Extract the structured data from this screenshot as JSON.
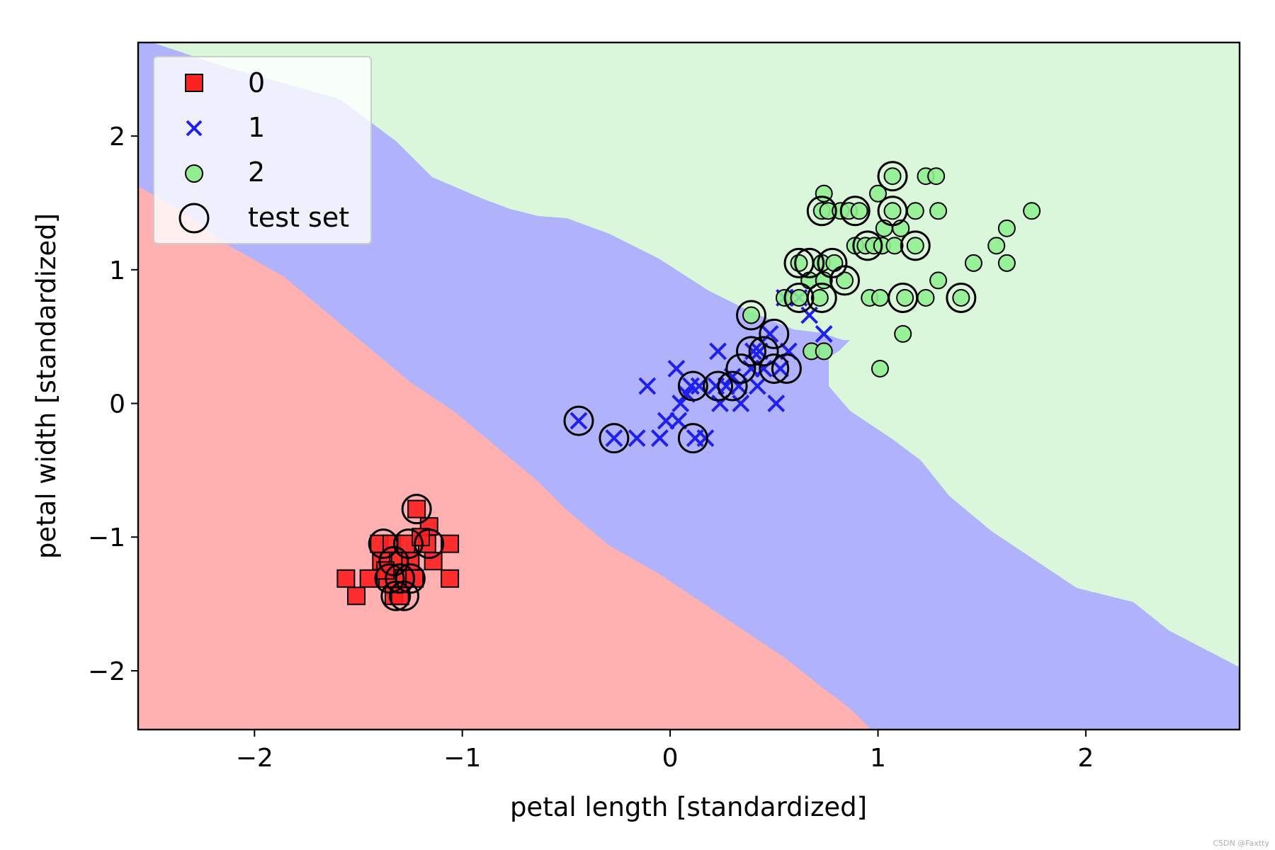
{
  "chart_data": {
    "type": "scatter",
    "title": "",
    "xlabel": "petal length [standardized]",
    "ylabel": "petal width [standardized]",
    "xlim": [
      -2.56,
      2.74
    ],
    "ylim": [
      -2.44,
      2.7
    ],
    "xticks": [
      -2,
      -1,
      0,
      1,
      2
    ],
    "yticks": [
      -2,
      -1,
      0,
      1,
      2
    ],
    "xtick_labels": [
      "−2",
      "−1",
      "0",
      "1",
      "2"
    ],
    "ytick_labels": [
      "−2",
      "−1",
      "0",
      "1",
      "2"
    ],
    "grid": false,
    "legend_position": "upper-left",
    "decision_regions": [
      {
        "class": "0",
        "color": "#ffb0b0"
      },
      {
        "class": "1",
        "color": "#b0b2fb"
      },
      {
        "class": "2",
        "color": "#dbf7db"
      }
    ],
    "series": [
      {
        "name": "0",
        "marker": "square",
        "color": "#ff2020",
        "points": [
          [
            -1.56,
            -1.31
          ],
          [
            -1.51,
            -1.44
          ],
          [
            -1.45,
            -1.31
          ],
          [
            -1.4,
            -1.05
          ],
          [
            -1.39,
            -1.18
          ],
          [
            -1.36,
            -1.31
          ],
          [
            -1.34,
            -1.05
          ],
          [
            -1.33,
            -1.44
          ],
          [
            -1.3,
            -1.18
          ],
          [
            -1.28,
            -1.31
          ],
          [
            -1.27,
            -1.05
          ],
          [
            -1.25,
            -1.18
          ],
          [
            -1.23,
            -1.31
          ],
          [
            -1.22,
            -0.79
          ],
          [
            -1.17,
            -1.05
          ],
          [
            -1.16,
            -0.92
          ],
          [
            -1.14,
            -1.18
          ],
          [
            -1.06,
            -1.05
          ],
          [
            -1.06,
            -1.31
          ],
          [
            -1.3,
            -1.44
          ],
          [
            -1.37,
            -1.25
          ],
          [
            -1.2,
            -1.0
          ]
        ]
      },
      {
        "name": "1",
        "marker": "x",
        "color": "#1f1fee",
        "points": [
          [
            -0.44,
            -0.13
          ],
          [
            -0.27,
            -0.26
          ],
          [
            -0.16,
            -0.26
          ],
          [
            -0.11,
            0.13
          ],
          [
            -0.05,
            -0.26
          ],
          [
            -0.02,
            -0.13
          ],
          [
            0.03,
            0.26
          ],
          [
            0.04,
            -0.13
          ],
          [
            0.05,
            0.0
          ],
          [
            0.08,
            0.07
          ],
          [
            0.1,
            0.13
          ],
          [
            0.12,
            -0.26
          ],
          [
            0.14,
            0.13
          ],
          [
            0.17,
            -0.26
          ],
          [
            0.22,
            0.13
          ],
          [
            0.24,
            0.0
          ],
          [
            0.23,
            0.39
          ],
          [
            0.27,
            0.13
          ],
          [
            0.3,
            0.2
          ],
          [
            0.33,
            0.13
          ],
          [
            0.34,
            0.0
          ],
          [
            0.39,
            0.26
          ],
          [
            0.4,
            0.39
          ],
          [
            0.42,
            0.13
          ],
          [
            0.43,
            0.39
          ],
          [
            0.45,
            0.26
          ],
          [
            0.48,
            0.52
          ],
          [
            0.51,
            0.0
          ],
          [
            0.53,
            0.26
          ],
          [
            0.55,
            0.79
          ],
          [
            0.57,
            0.39
          ],
          [
            0.62,
            0.79
          ],
          [
            0.67,
            0.66
          ],
          [
            0.74,
            0.52
          ]
        ]
      },
      {
        "name": "2",
        "marker": "circle",
        "color": "#90ee90",
        "points": [
          [
            0.39,
            0.66
          ],
          [
            0.55,
            0.79
          ],
          [
            0.62,
            0.79
          ],
          [
            0.62,
            1.05
          ],
          [
            0.67,
            0.92
          ],
          [
            0.68,
            0.39
          ],
          [
            0.72,
            0.79
          ],
          [
            0.73,
            1.05
          ],
          [
            0.73,
            1.44
          ],
          [
            0.74,
            1.57
          ],
          [
            0.74,
            0.92
          ],
          [
            0.76,
            1.44
          ],
          [
            0.79,
            1.05
          ],
          [
            0.82,
            1.44
          ],
          [
            0.84,
            0.92
          ],
          [
            0.86,
            1.44
          ],
          [
            0.89,
            1.18
          ],
          [
            0.91,
            1.44
          ],
          [
            0.94,
            1.18
          ],
          [
            0.96,
            0.79
          ],
          [
            0.98,
            1.18
          ],
          [
            1.0,
            1.57
          ],
          [
            1.01,
            0.79
          ],
          [
            1.01,
            0.26
          ],
          [
            1.02,
            1.18
          ],
          [
            1.03,
            1.31
          ],
          [
            1.07,
            1.44
          ],
          [
            1.07,
            1.7
          ],
          [
            1.08,
            1.18
          ],
          [
            1.11,
            1.31
          ],
          [
            1.12,
            0.52
          ],
          [
            1.13,
            0.79
          ],
          [
            1.18,
            1.44
          ],
          [
            1.18,
            1.18
          ],
          [
            1.23,
            1.7
          ],
          [
            1.23,
            0.79
          ],
          [
            1.28,
            1.7
          ],
          [
            1.29,
            0.92
          ],
          [
            1.29,
            1.44
          ],
          [
            1.46,
            1.05
          ],
          [
            1.57,
            1.18
          ],
          [
            1.62,
            1.31
          ],
          [
            1.62,
            1.05
          ],
          [
            1.74,
            1.44
          ],
          [
            1.4,
            0.79
          ],
          [
            0.74,
            0.39
          ]
        ]
      }
    ],
    "test_set": {
      "name": "test set",
      "marker": "open-circle",
      "points": [
        [
          -1.38,
          -1.05
        ],
        [
          -1.33,
          -1.18
        ],
        [
          -1.3,
          -1.31
        ],
        [
          -1.26,
          -1.05
        ],
        [
          -1.22,
          -0.79
        ],
        [
          -1.16,
          -1.05
        ],
        [
          -1.25,
          -1.31
        ],
        [
          -1.32,
          -1.44
        ],
        [
          -1.28,
          -1.44
        ],
        [
          -1.35,
          -1.31
        ],
        [
          -0.44,
          -0.13
        ],
        [
          -0.27,
          -0.26
        ],
        [
          0.11,
          -0.26
        ],
        [
          0.11,
          0.13
        ],
        [
          0.23,
          0.13
        ],
        [
          0.3,
          0.13
        ],
        [
          0.34,
          0.26
        ],
        [
          0.39,
          0.66
        ],
        [
          0.39,
          0.39
        ],
        [
          0.45,
          0.39
        ],
        [
          0.5,
          0.26
        ],
        [
          0.5,
          0.52
        ],
        [
          0.56,
          0.26
        ],
        [
          0.62,
          0.79
        ],
        [
          0.62,
          1.05
        ],
        [
          0.67,
          1.05
        ],
        [
          0.73,
          0.79
        ],
        [
          0.73,
          1.44
        ],
        [
          0.78,
          1.05
        ],
        [
          0.84,
          0.92
        ],
        [
          0.89,
          1.44
        ],
        [
          0.95,
          1.18
        ],
        [
          1.07,
          1.7
        ],
        [
          1.07,
          1.44
        ],
        [
          1.12,
          0.79
        ],
        [
          1.18,
          1.18
        ],
        [
          1.4,
          0.79
        ]
      ]
    },
    "legend": [
      {
        "label": "0",
        "marker": "square"
      },
      {
        "label": "1",
        "marker": "x"
      },
      {
        "label": "2",
        "marker": "circle"
      },
      {
        "label": "test set",
        "marker": "open-circle"
      }
    ]
  },
  "watermark": "CSDN @Faxtty"
}
